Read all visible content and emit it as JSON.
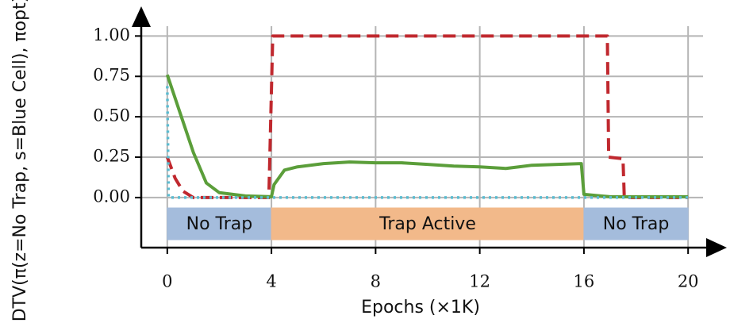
{
  "chart_data": {
    "type": "line",
    "xlabel": "Epochs (×1K)",
    "ylabel": "DTV(π(z=No Trap, s=Blue Cell), πopt)",
    "xlim": [
      -1,
      21
    ],
    "ylim": [
      -0.31,
      1.1
    ],
    "xticks": [
      0,
      4,
      8,
      12,
      16,
      20
    ],
    "yticks": [
      {
        "value": 0,
        "label": "0.00"
      },
      0.25,
      {
        "value": 0.5,
        "label": "0.50"
      },
      0.75,
      {
        "value": 1,
        "label": "1.00"
      }
    ],
    "grid": true,
    "phases": [
      {
        "label": "No Trap",
        "start": 0,
        "end": 4,
        "color": "#a4bcdc"
      },
      {
        "label": "Trap Active",
        "start": 4,
        "end": 16,
        "color": "#f2b98a"
      },
      {
        "label": "No Trap",
        "start": 16,
        "end": 20,
        "color": "#a4bcdc"
      }
    ],
    "series": [
      {
        "color": "#c0282e",
        "dash": "dashed",
        "x": [
          0,
          0.3,
          0.6,
          1,
          3.9,
          4.05,
          16.9,
          16.95,
          17.5,
          17.55,
          20
        ],
        "values": [
          0.25,
          0.12,
          0.04,
          0,
          0,
          1,
          1,
          0.25,
          0.24,
          0,
          0
        ]
      },
      {
        "color": "#5b9e3a",
        "dash": "solid",
        "x": [
          0,
          0.5,
          1,
          1.5,
          2,
          3,
          4,
          4.1,
          4.5,
          5,
          6,
          7,
          8,
          9,
          10,
          11,
          12,
          13,
          13.5,
          14,
          15,
          15.9,
          16,
          17,
          18,
          20
        ],
        "values": [
          0.76,
          0.52,
          0.28,
          0.09,
          0.03,
          0.01,
          0.005,
          0.08,
          0.17,
          0.19,
          0.21,
          0.22,
          0.215,
          0.215,
          0.205,
          0.195,
          0.19,
          0.18,
          0.19,
          0.2,
          0.205,
          0.21,
          0.02,
          0.005,
          0.005,
          0.005
        ]
      },
      {
        "color": "#5bbcd1",
        "dash": "dotted",
        "x": [
          0,
          0.05,
          20
        ],
        "values": [
          0.69,
          0,
          0
        ]
      }
    ]
  }
}
